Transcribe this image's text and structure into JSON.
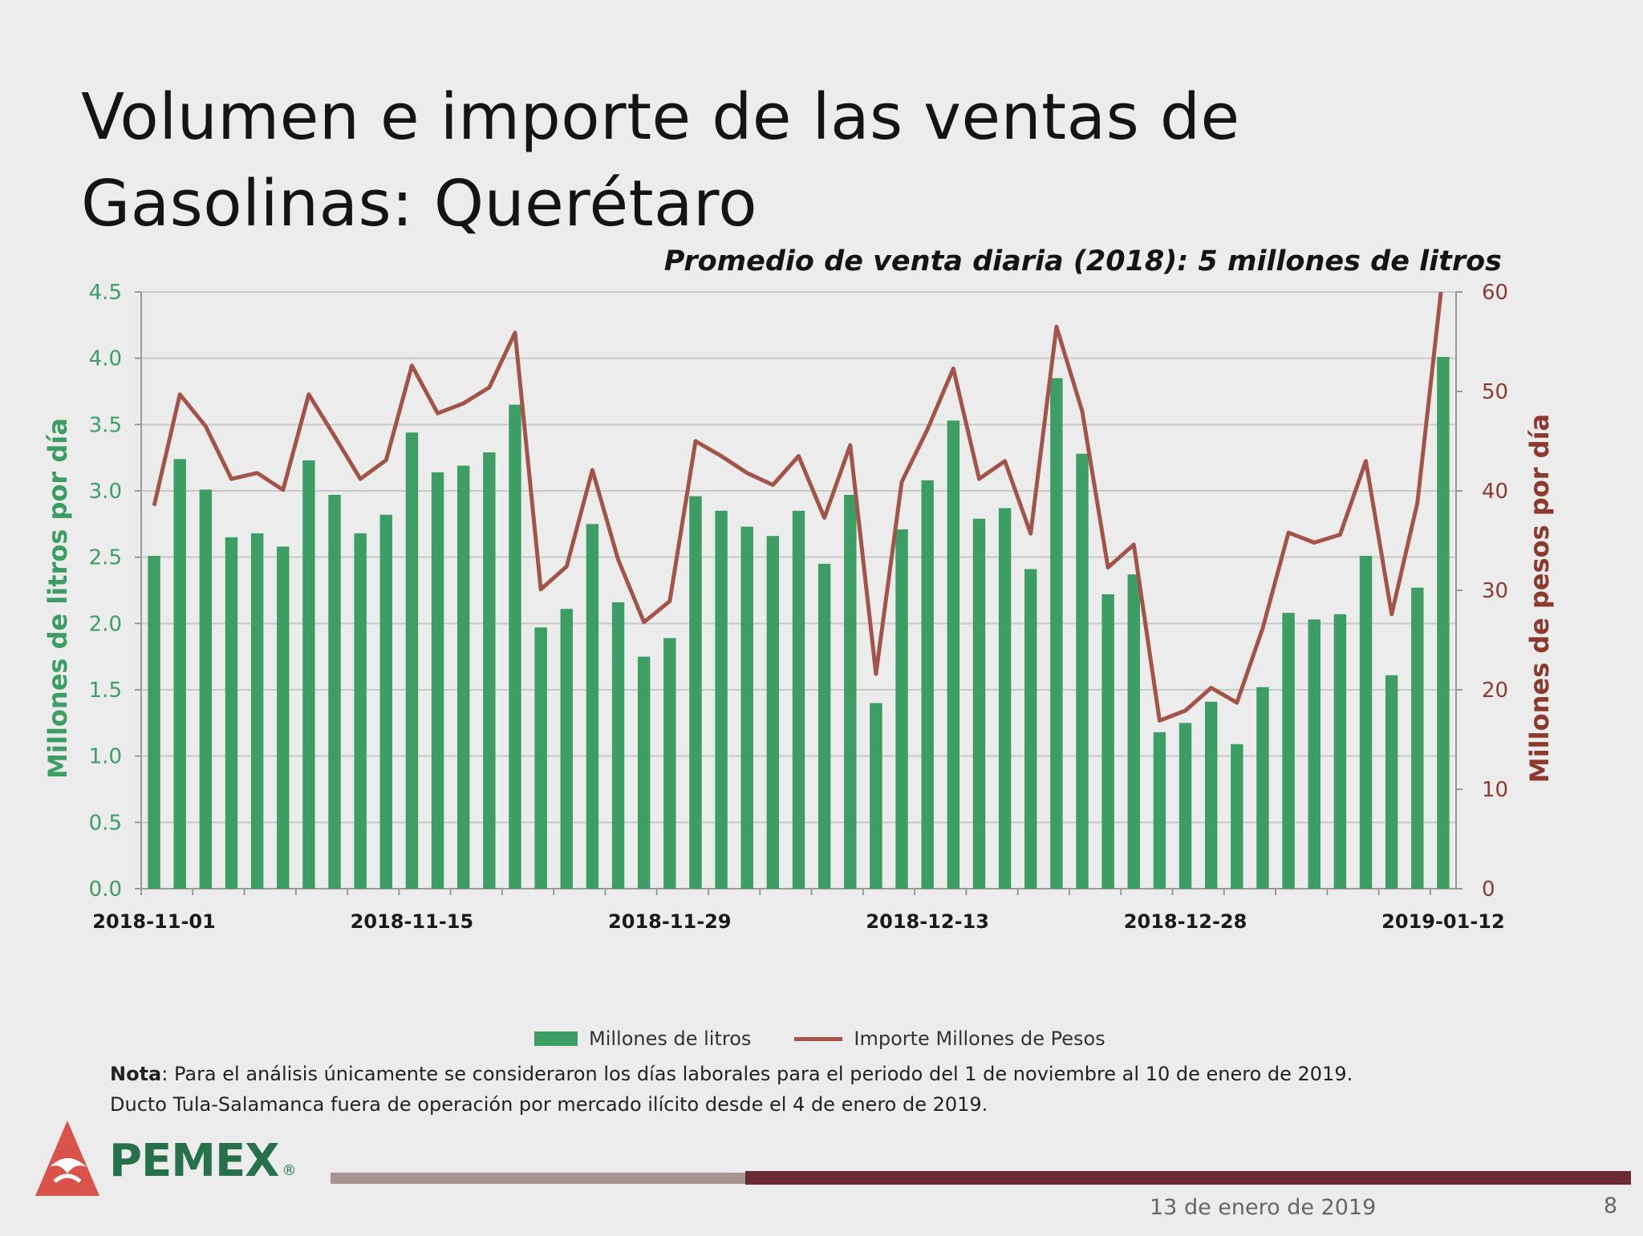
{
  "title": "Volumen e importe de las ventas de Gasolinas: Querétaro",
  "subtitle": "Promedio de venta diaria (2018): 5 millones de litros",
  "legend": {
    "bars": "Millones de litros",
    "line": "Importe Millones de Pesos"
  },
  "note": {
    "label": "Nota",
    "line1": ": Para el análisis únicamente se consideraron los días laborales para el periodo del 1 de noviembre al 10 de enero de 2019.",
    "line2": "Ducto Tula-Salamanca fuera de operación por mercado ilícito desde el 4 de enero de 2019."
  },
  "footer": {
    "logo": "PEMEX",
    "logo_mark": "®",
    "date": "13 de enero de 2019",
    "page": "8"
  },
  "colors": {
    "bars": "#3c9e64",
    "line": "#a35449",
    "left_axis_text": "#3c9e64",
    "right_axis_text": "#8c3a2e",
    "footer_bar": "#6b2a36"
  },
  "chart_data": {
    "type": "bar",
    "ylabel": "Millones de litros por día",
    "y2label": "Millones de pesos por día",
    "ylim": [
      0,
      4.5
    ],
    "y2lim": [
      0,
      60
    ],
    "yticks": [
      "0.0",
      "0.5",
      "1.0",
      "1.5",
      "2.0",
      "2.5",
      "3.0",
      "3.5",
      "4.0",
      "4.5"
    ],
    "y2ticks": [
      "0",
      "10",
      "20",
      "30",
      "40",
      "50",
      "60"
    ],
    "xtick_labels": [
      "2018-11-01",
      "2018-11-15",
      "2018-11-29",
      "2018-12-13",
      "2018-12-28",
      "2019-01-12"
    ],
    "xtick_label_positions": [
      0,
      10,
      20,
      30,
      40,
      50
    ],
    "grid": true,
    "legend_position": "bottom",
    "series": [
      {
        "name": "Millones de litros",
        "type": "bar",
        "axis": "left",
        "values": [
          2.51,
          3.24,
          3.01,
          2.65,
          2.68,
          2.58,
          3.23,
          2.97,
          2.68,
          2.82,
          3.44,
          3.14,
          3.19,
          3.29,
          3.65,
          1.97,
          2.11,
          2.75,
          2.16,
          1.75,
          1.89,
          2.96,
          2.85,
          2.73,
          2.66,
          2.85,
          2.45,
          2.97,
          1.4,
          2.71,
          3.08,
          3.53,
          2.79,
          2.87,
          2.41,
          3.85,
          3.28,
          2.22,
          2.37,
          1.18,
          1.25,
          1.41,
          1.09,
          1.52,
          2.08,
          2.03,
          2.07,
          2.51,
          1.61,
          2.27,
          4.01
        ]
      },
      {
        "name": "Importe Millones de Pesos",
        "type": "line",
        "axis": "right",
        "values": [
          38.5,
          49.7,
          46.5,
          41.2,
          41.8,
          40.1,
          49.7,
          45.5,
          41.2,
          43.1,
          52.6,
          47.8,
          48.8,
          50.4,
          55.9,
          30.1,
          32.4,
          42.1,
          33.1,
          26.8,
          28.9,
          45.0,
          43.5,
          41.8,
          40.6,
          43.5,
          37.3,
          44.6,
          21.6,
          40.9,
          46.2,
          52.3,
          41.2,
          43.0,
          35.7,
          56.5,
          48.0,
          32.3,
          34.6,
          16.9,
          17.9,
          20.2,
          18.7,
          26.2,
          35.8,
          34.8,
          35.6,
          43.0,
          27.6,
          38.8,
          62.0
        ]
      }
    ]
  }
}
